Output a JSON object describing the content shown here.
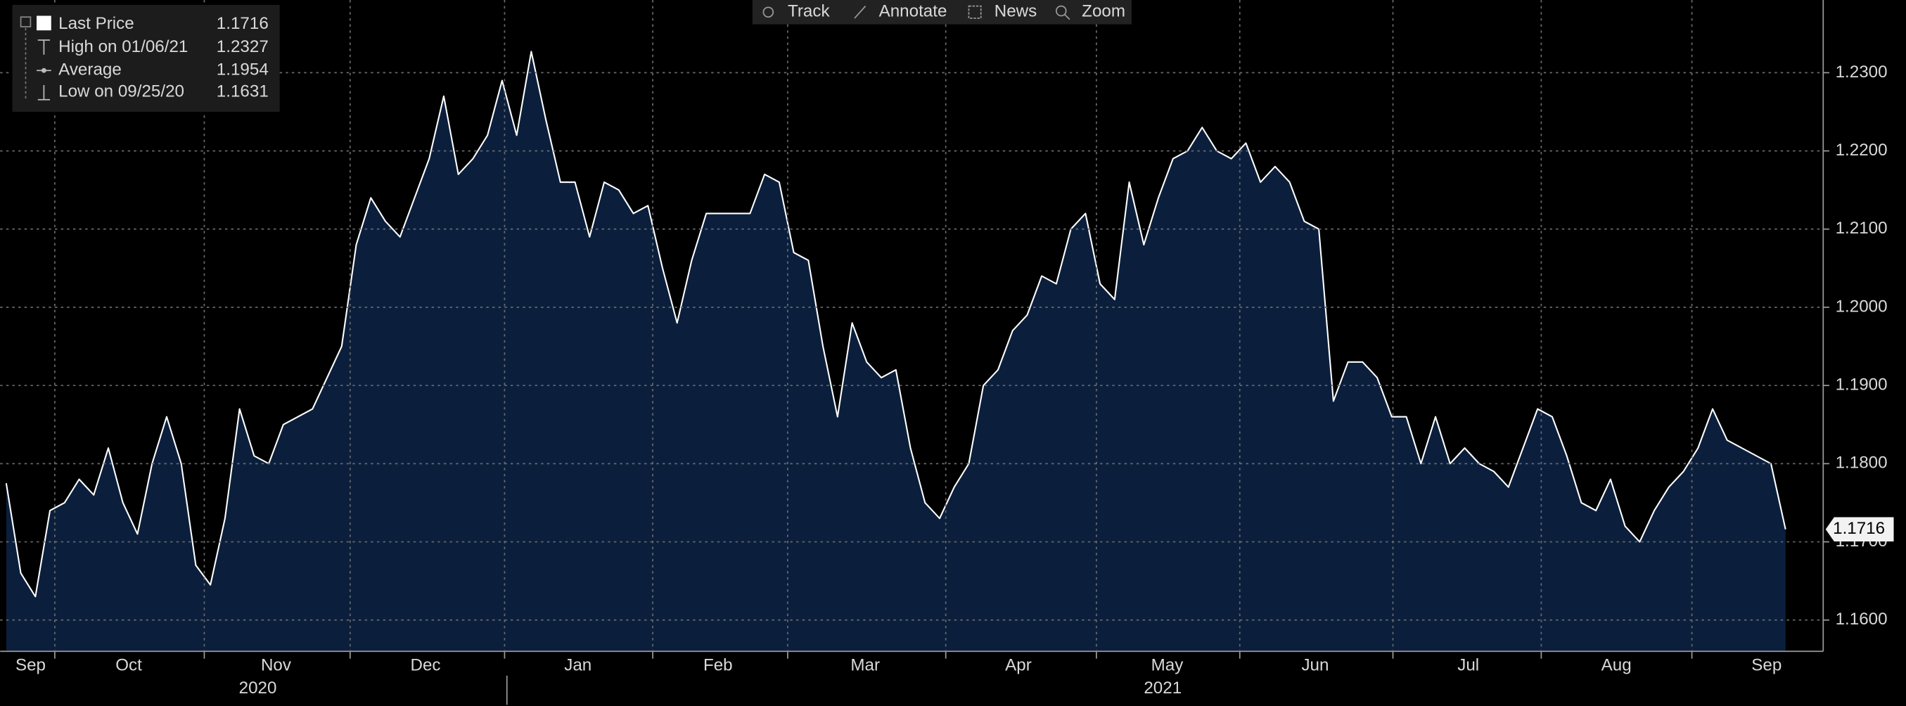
{
  "chart_data": {
    "type": "area",
    "values": [
      1.1775,
      1.166,
      1.163,
      1.174,
      1.175,
      1.178,
      1.176,
      1.182,
      1.175,
      1.171,
      1.18,
      1.186,
      1.18,
      1.167,
      1.1645,
      1.173,
      1.187,
      1.181,
      1.18,
      1.185,
      1.186,
      1.187,
      1.191,
      1.195,
      1.208,
      1.214,
      1.211,
      1.209,
      1.214,
      1.219,
      1.227,
      1.217,
      1.219,
      1.222,
      1.229,
      1.222,
      1.2327,
      1.224,
      1.216,
      1.216,
      1.209,
      1.216,
      1.215,
      1.212,
      1.213,
      1.205,
      1.198,
      1.206,
      1.212,
      1.212,
      1.212,
      1.212,
      1.217,
      1.216,
      1.207,
      1.206,
      1.195,
      1.186,
      1.198,
      1.193,
      1.191,
      1.192,
      1.182,
      1.175,
      1.173,
      1.177,
      1.18,
      1.19,
      1.192,
      1.197,
      1.199,
      1.204,
      1.203,
      1.21,
      1.212,
      1.203,
      1.201,
      1.216,
      1.208,
      1.214,
      1.219,
      1.22,
      1.223,
      1.22,
      1.219,
      1.221,
      1.216,
      1.218,
      1.216,
      1.211,
      1.21,
      1.188,
      1.193,
      1.193,
      1.191,
      1.186,
      1.186,
      1.18,
      1.186,
      1.18,
      1.182,
      1.18,
      1.179,
      1.177,
      1.182,
      1.187,
      1.186,
      1.181,
      1.175,
      1.174,
      1.178,
      1.172,
      1.17,
      1.174,
      1.177,
      1.179,
      1.182,
      1.187,
      1.183,
      1.182,
      1.181,
      1.18,
      1.1716
    ],
    "color": "#0b1f3d",
    "line_color": "#ffffff",
    "grid": true,
    "xlim": [
      0,
      122
    ],
    "ylim": [
      1.156,
      1.2393
    ],
    "yticks": [
      {
        "value": 1.16,
        "label": "1.1600"
      },
      {
        "value": 1.17,
        "label": "1.1700"
      },
      {
        "value": 1.18,
        "label": "1.1800"
      },
      {
        "value": 1.19,
        "label": "1.1900"
      },
      {
        "value": 1.2,
        "label": "1.2000"
      },
      {
        "value": 1.21,
        "label": "1.2100"
      },
      {
        "value": 1.22,
        "label": "1.2200"
      },
      {
        "value": 1.23,
        "label": "1.2300"
      }
    ],
    "xticks": [
      {
        "value": 1.67,
        "label": "Sep"
      },
      {
        "value": 8.4,
        "label": "Oct"
      },
      {
        "value": 18.5,
        "label": "Nov"
      },
      {
        "value": 28.75,
        "label": "Dec"
      },
      {
        "value": 39.2,
        "label": "Jan"
      },
      {
        "value": 48.8,
        "label": "Feb"
      },
      {
        "value": 58.9,
        "label": "Mar"
      },
      {
        "value": 69.4,
        "label": "Apr"
      },
      {
        "value": 79.6,
        "label": "May"
      },
      {
        "value": 89.75,
        "label": "Jun"
      },
      {
        "value": 100.25,
        "label": "Jul"
      },
      {
        "value": 110.4,
        "label": "Aug"
      },
      {
        "value": 120.7,
        "label": "Sep"
      }
    ],
    "xgrid": [
      3.33,
      13.58,
      23.58,
      34.17,
      44.33,
      53.58,
      64.42,
      74.75,
      84.58,
      95.08,
      105.25,
      115.58
    ],
    "year_labels": [
      {
        "value": 17.25,
        "label": "2020"
      },
      {
        "value": 79.3,
        "label": "2021"
      }
    ],
    "year_divider": 34.33,
    "legend": [
      {
        "label": "Last Price",
        "value": 1.1716
      },
      {
        "label": "High on 01/06/21",
        "value": 1.2327
      },
      {
        "label": "Average",
        "value": 1.1954
      },
      {
        "label": "Low on 09/25/20",
        "value": 1.1631
      }
    ],
    "toolbar": [
      "Track",
      "Annotate",
      "News",
      "Zoom"
    ]
  }
}
